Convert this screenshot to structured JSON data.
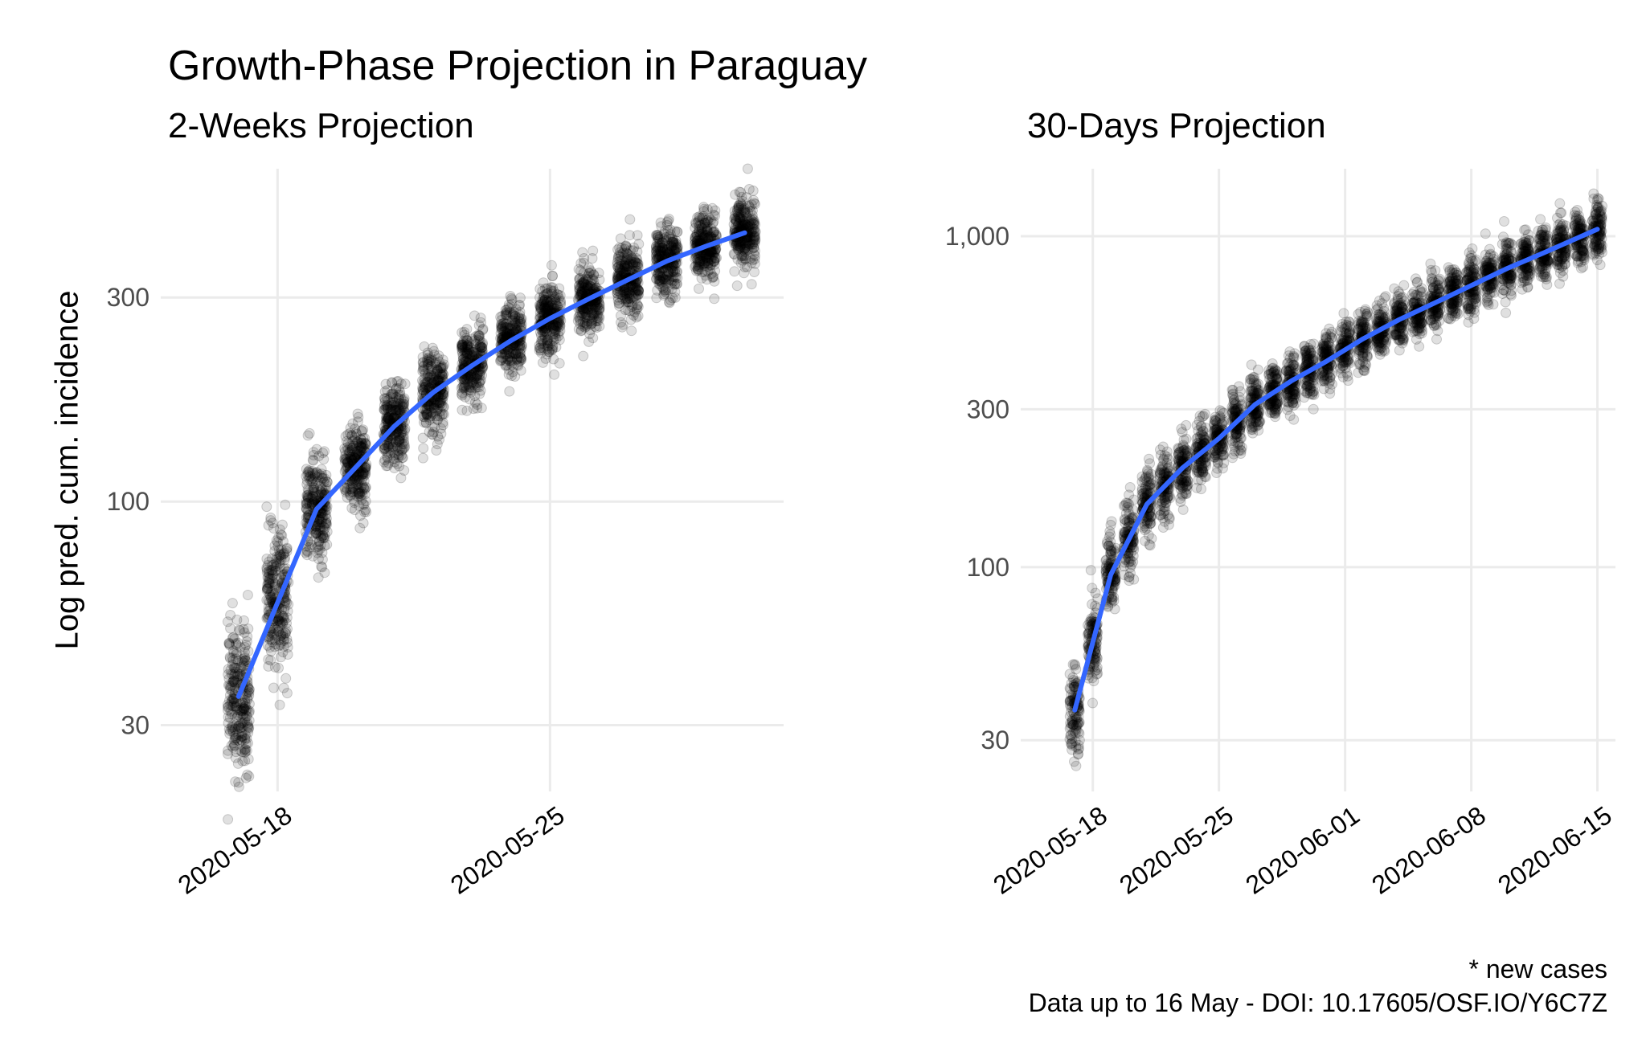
{
  "title": "Growth-Phase Projection in Paraguay",
  "y_axis_label": "Log pred. cum. incidence",
  "caption": {
    "line1": "* new cases",
    "line2": "Data up to 16 May - DOI: 10.17605/OSF.IO/Y6C7Z"
  },
  "colors": {
    "trend": "#3366FF",
    "points": "#000000",
    "grid": "#EBEBEB"
  },
  "chart_data": [
    {
      "type": "scatter",
      "title": "2-Weeks Projection",
      "ylabel": "Log pred. cum. incidence",
      "yscale": "log",
      "ylim": [
        21,
        600
      ],
      "xlim": [
        "2020-05-15",
        "2020-05-31"
      ],
      "y_ticks": [
        30,
        100,
        300
      ],
      "y_tick_labels": [
        "30",
        "100",
        "300"
      ],
      "x_ticks": [
        "2020-05-18",
        "2020-05-25"
      ],
      "x_tick_labels": [
        "2020-05-18",
        "2020-05-25"
      ],
      "x": [
        "2020-05-17",
        "2020-05-18",
        "2020-05-19",
        "2020-05-20",
        "2020-05-21",
        "2020-05-22",
        "2020-05-23",
        "2020-05-24",
        "2020-05-25",
        "2020-05-26",
        "2020-05-27",
        "2020-05-28",
        "2020-05-29",
        "2020-05-30"
      ],
      "series": [
        {
          "name": "smoothed trend",
          "values": [
            35,
            58,
            96,
            120,
            150,
            180,
            208,
            238,
            268,
            298,
            330,
            365,
            395,
            425
          ]
        }
      ],
      "point_cloud_spread": [
        0.25,
        0.17,
        0.15,
        0.14,
        0.14,
        0.13,
        0.12,
        0.12,
        0.12,
        0.12,
        0.12,
        0.12,
        0.12,
        0.12
      ]
    },
    {
      "type": "scatter",
      "title": "30-Days Projection",
      "ylabel": "Log pred. cum. incidence",
      "yscale": "log",
      "ylim": [
        21,
        1600
      ],
      "xlim": [
        "2020-05-14",
        "2020-06-16"
      ],
      "y_ticks": [
        30,
        100,
        300,
        1000
      ],
      "y_tick_labels": [
        "30",
        "100",
        "300",
        "1,000"
      ],
      "x_ticks": [
        "2020-05-18",
        "2020-05-25",
        "2020-06-01",
        "2020-06-08",
        "2020-06-15"
      ],
      "x_tick_labels": [
        "2020-05-18",
        "2020-05-25",
        "2020-06-01",
        "2020-06-08",
        "2020-06-15"
      ],
      "x": [
        "2020-05-17",
        "2020-05-19",
        "2020-05-21",
        "2020-05-23",
        "2020-05-25",
        "2020-05-27",
        "2020-05-29",
        "2020-05-31",
        "2020-06-02",
        "2020-06-04",
        "2020-06-06",
        "2020-06-08",
        "2020-06-10",
        "2020-06-12",
        "2020-06-15"
      ],
      "series": [
        {
          "name": "smoothed trend",
          "values": [
            37,
            95,
            155,
            200,
            245,
            310,
            365,
            420,
            490,
            560,
            630,
            710,
            800,
            890,
            1050
          ]
        }
      ],
      "point_cloud_spread": [
        0.2,
        0.16,
        0.14,
        0.13,
        0.13,
        0.12,
        0.12,
        0.12,
        0.12,
        0.12,
        0.12,
        0.12,
        0.12,
        0.12,
        0.12
      ]
    }
  ]
}
